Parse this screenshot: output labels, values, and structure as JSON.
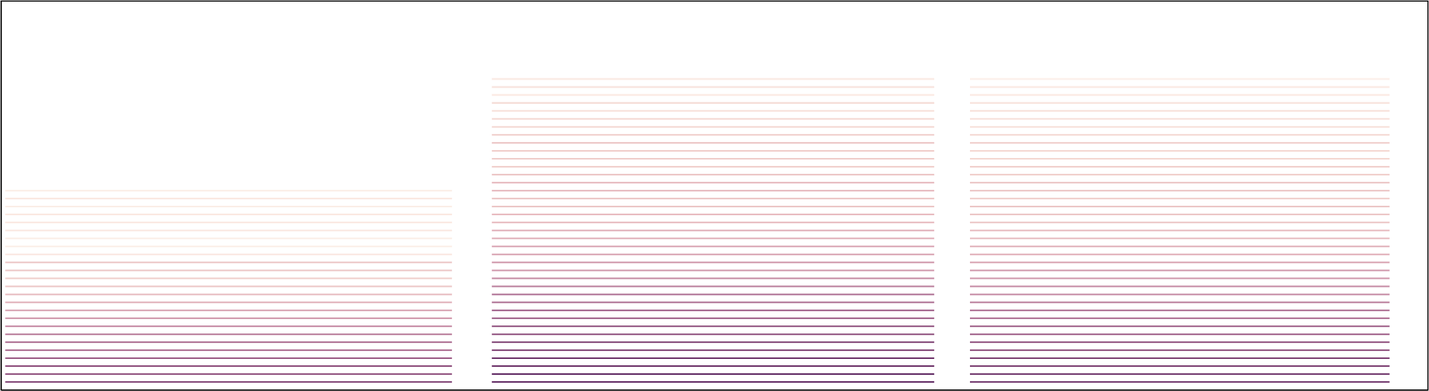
{
  "chart_data": {
    "type": "spectrogram",
    "xlim": [
      0,
      100
    ],
    "ylim": [
      0,
      100
    ],
    "tick_labels": false,
    "grid": false,
    "notes": [
      {
        "start": 0.3,
        "end": 31.6,
        "harmonics": [
          2.05,
          4.1,
          6.15,
          8.2,
          10.25,
          12.3,
          14.35,
          16.4,
          18.45,
          20.5,
          22.55,
          24.6,
          26.65,
          28.7,
          30.75,
          32.8,
          34.85,
          36.9,
          38.95,
          41,
          43.05,
          45.1,
          47.15,
          49.2,
          51.25
        ],
        "levels": [
          0.85,
          0.8,
          0.8,
          0.75,
          0.7,
          0.7,
          0.65,
          0.6,
          0.55,
          0.5,
          0.45,
          0.4,
          0.35,
          0.3,
          0.35,
          0.35,
          0.15,
          0.1,
          0.1,
          0.15,
          0.15,
          0.15,
          0.1,
          0.15,
          0.1
        ]
      },
      {
        "start": 34.4,
        "end": 65.4,
        "harmonics": [
          2.05,
          4.1,
          6.15,
          8.2,
          10.25,
          12.3,
          14.35,
          16.4,
          18.45,
          20.5,
          22.55,
          24.6,
          26.65,
          28.7,
          30.75,
          32.8,
          34.85,
          36.9,
          38.95,
          41,
          43.05,
          45.1,
          47.15,
          49.2,
          51.25,
          53.3,
          55.35,
          57.4,
          59.45,
          61.5,
          63.55,
          65.6,
          67.65,
          69.7,
          71.75,
          73.8,
          75.85,
          77.9,
          79.95
        ],
        "levels": [
          0.95,
          0.95,
          0.9,
          0.9,
          0.85,
          0.85,
          0.8,
          0.8,
          0.75,
          0.75,
          0.7,
          0.7,
          0.65,
          0.6,
          0.55,
          0.55,
          0.5,
          0.5,
          0.45,
          0.45,
          0.4,
          0.4,
          0.35,
          0.35,
          0.4,
          0.4,
          0.35,
          0.3,
          0.3,
          0.3,
          0.35,
          0.3,
          0.25,
          0.25,
          0.2,
          0.25,
          0.15,
          0.2,
          0.15
        ]
      },
      {
        "start": 67.9,
        "end": 97.3,
        "harmonics": [
          2.05,
          4.1,
          6.15,
          8.2,
          10.25,
          12.3,
          14.35,
          16.4,
          18.45,
          20.5,
          22.55,
          24.6,
          26.65,
          28.7,
          30.75,
          32.8,
          34.85,
          36.9,
          38.95,
          41,
          43.05,
          45.1,
          47.15,
          49.2,
          51.25,
          53.3,
          55.35,
          57.4,
          59.45,
          61.5,
          63.55,
          65.6,
          67.65,
          69.7,
          71.75,
          73.8,
          75.85,
          77.9,
          79.95
        ],
        "levels": [
          0.9,
          0.9,
          0.85,
          0.85,
          0.8,
          0.8,
          0.75,
          0.75,
          0.7,
          0.7,
          0.65,
          0.6,
          0.6,
          0.55,
          0.55,
          0.5,
          0.45,
          0.45,
          0.4,
          0.4,
          0.35,
          0.35,
          0.35,
          0.3,
          0.35,
          0.35,
          0.3,
          0.3,
          0.25,
          0.25,
          0.3,
          0.25,
          0.2,
          0.2,
          0.2,
          0.2,
          0.15,
          0.15,
          0.1
        ]
      }
    ]
  }
}
